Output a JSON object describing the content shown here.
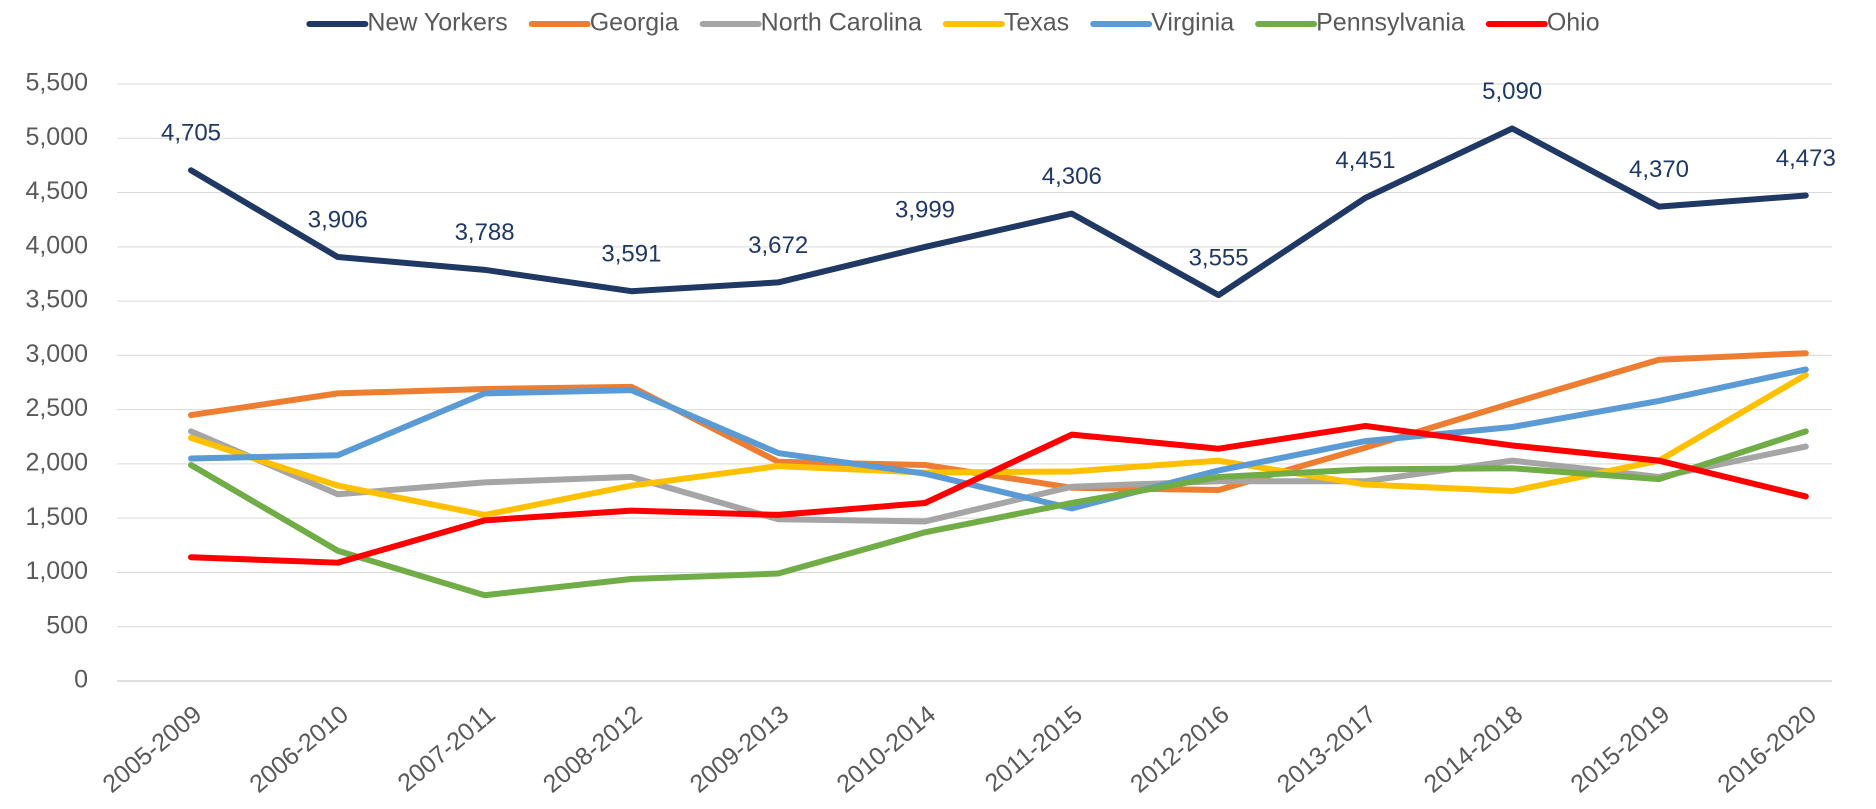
{
  "chart_data": {
    "type": "line",
    "categories": [
      "2005-2009",
      "2006-2010",
      "2007-2011",
      "2008-2012",
      "2009-2013",
      "2010-2014",
      "2011-2015",
      "2012-2016",
      "2013-2017",
      "2014-2018",
      "2015-2019",
      "2016-2020"
    ],
    "series": [
      {
        "name": "New Yorkers",
        "color": "#1f3864",
        "values": [
          4705,
          3906,
          3788,
          3591,
          3672,
          3999,
          4306,
          3555,
          4451,
          5090,
          4370,
          4473
        ],
        "value_labels": [
          "4,705",
          "3,906",
          "3,788",
          "3,591",
          "3,672",
          "3,999",
          "4,306",
          "3,555",
          "4,451",
          "5,090",
          "4,370",
          "4,473"
        ]
      },
      {
        "name": "Georgia",
        "color": "#ed7d31",
        "values": [
          2450,
          2650,
          2690,
          2710,
          2020,
          1990,
          1780,
          1760,
          2150,
          2560,
          2960,
          3020
        ]
      },
      {
        "name": "North Carolina",
        "color": "#a5a5a5",
        "values": [
          2300,
          1720,
          1830,
          1880,
          1490,
          1470,
          1790,
          1840,
          1840,
          2030,
          1880,
          2160
        ]
      },
      {
        "name": "Texas",
        "color": "#ffc000",
        "values": [
          2240,
          1800,
          1530,
          1800,
          1980,
          1920,
          1930,
          2030,
          1810,
          1750,
          2030,
          2820
        ]
      },
      {
        "name": "Virginia",
        "color": "#5b9bd5",
        "values": [
          2050,
          2080,
          2650,
          2680,
          2100,
          1910,
          1590,
          1940,
          2210,
          2340,
          2580,
          2870
        ]
      },
      {
        "name": "Pennsylvania",
        "color": "#70ad47",
        "values": [
          1990,
          1200,
          790,
          940,
          990,
          1370,
          1640,
          1880,
          1950,
          1960,
          1860,
          2300
        ]
      },
      {
        "name": "Ohio",
        "color": "#ff0000",
        "values": [
          1140,
          1090,
          1480,
          1570,
          1530,
          1640,
          2270,
          2140,
          2350,
          2170,
          2030,
          1700
        ]
      }
    ],
    "ylim": [
      0,
      5500
    ],
    "yticks": [
      0,
      500,
      {
        "value": 1000,
        "label": "1,000"
      },
      {
        "value": 1500,
        "label": "1,500"
      },
      {
        "value": 2000,
        "label": "2,000"
      },
      {
        "value": 2500,
        "label": "2,500"
      },
      {
        "value": 3000,
        "label": "3,000"
      },
      {
        "value": 3500,
        "label": "3,500"
      },
      {
        "value": 4000,
        "label": "4,000"
      },
      {
        "value": 4500,
        "label": "4,500"
      },
      {
        "value": 5000,
        "label": "5,000"
      },
      {
        "value": 5500,
        "label": "5,500"
      }
    ],
    "grid": true,
    "legend": "top"
  }
}
